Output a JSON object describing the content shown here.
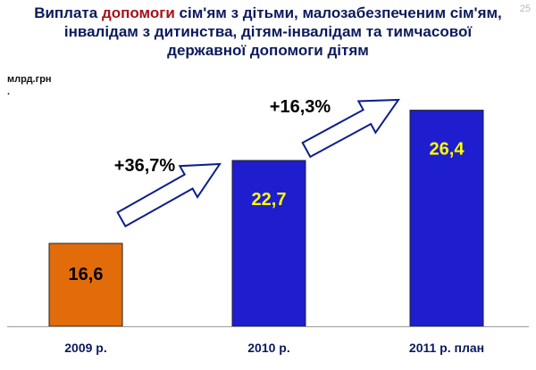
{
  "slide": {
    "title_part1": "Виплата ",
    "title_highlight": "допомоги",
    "title_part2": " сім'ям з дітьми, малозабезпеченим  сім'ям,",
    "title_line2": "інвалідам з дитинства, дітям-інвалідам та тимчасової",
    "title_line3": "державної допомоги дітям",
    "page_number": "25",
    "unit_label": "млрд.грн",
    "unit_dot": "."
  },
  "colors": {
    "title": "#0b1a5c",
    "title_highlight": "#a5131b",
    "bar_2009": "#e36c0a",
    "bar_blue": "#1e1ecf",
    "label_dark": "#000000",
    "label_yellow": "#ffff00",
    "arrow_stroke": "#0d1f8a"
  },
  "chart_data": {
    "type": "bar",
    "categories": [
      "2009 р.",
      "2010 р.",
      "2011 р. план"
    ],
    "values": [
      16.6,
      22.7,
      26.4
    ],
    "data_labels": [
      "16,6",
      "22,7",
      "26,4"
    ],
    "bar_colors": [
      "#e36c0a",
      "#1e1ecf",
      "#1e1ecf"
    ],
    "label_colors": [
      "#000000",
      "#ffff00",
      "#ffff00"
    ],
    "annotations": [
      "+36,7%",
      "+16,3%"
    ],
    "title": "",
    "xlabel": "",
    "ylabel": "млрд.грн",
    "ylim": [
      10.5,
      26.9
    ],
    "grid": false,
    "legend": "none"
  }
}
